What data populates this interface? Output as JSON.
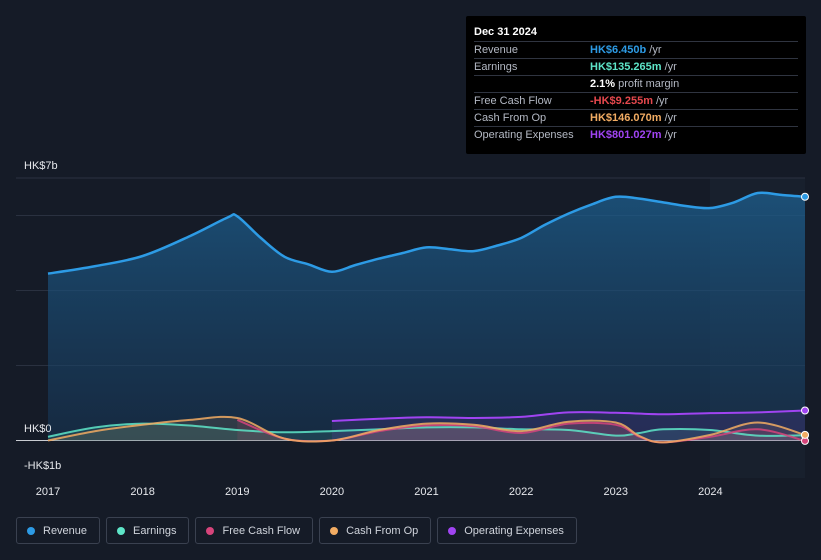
{
  "tooltip": {
    "date": "Dec 31 2024",
    "rows": [
      {
        "label": "Revenue",
        "value": "HK$6.450b",
        "unit": "/yr",
        "color": "#2d9be5"
      },
      {
        "label": "Earnings",
        "value": "HK$135.265m",
        "unit": "/yr",
        "color": "#5ee5c8"
      },
      {
        "label": "",
        "value": "2.1%",
        "unit": "profit margin",
        "color": "#ffffff"
      },
      {
        "label": "Free Cash Flow",
        "value": "-HK$9.255m",
        "unit": "/yr",
        "color": "#e5484d"
      },
      {
        "label": "Cash From Op",
        "value": "HK$146.070m",
        "unit": "/yr",
        "color": "#f2ac63"
      },
      {
        "label": "Operating Expenses",
        "value": "HK$801.027m",
        "unit": "/yr",
        "color": "#a044f2"
      }
    ]
  },
  "axis": {
    "y_top_label": "HK$7b",
    "y_zero_label": "HK$0",
    "y_bottom_label": "-HK$1b",
    "x_ticks": [
      "2017",
      "2018",
      "2019",
      "2020",
      "2021",
      "2022",
      "2023",
      "2024"
    ]
  },
  "legend": [
    {
      "label": "Revenue",
      "color": "#2d9be5"
    },
    {
      "label": "Earnings",
      "color": "#5ee5c8"
    },
    {
      "label": "Free Cash Flow",
      "color": "#d6447b"
    },
    {
      "label": "Cash From Op",
      "color": "#f2ac63"
    },
    {
      "label": "Operating Expenses",
      "color": "#a044f2"
    }
  ],
  "chart_data": {
    "type": "area",
    "ylim": [
      -1,
      7
    ],
    "y_unit": "HK$b",
    "x_ticks": [
      2017,
      2018,
      2019,
      2020,
      2021,
      2022,
      2023,
      2024
    ],
    "series": [
      {
        "name": "Revenue",
        "color": "#2d9be5",
        "x": [
          2017.0,
          2017.5,
          2018.0,
          2018.5,
          2018.9,
          2019.0,
          2019.25,
          2019.5,
          2019.75,
          2020.0,
          2020.25,
          2020.5,
          2020.75,
          2021.0,
          2021.25,
          2021.5,
          2021.75,
          2022.0,
          2022.25,
          2022.5,
          2022.75,
          2023.0,
          2023.25,
          2023.5,
          2023.75,
          2024.0,
          2024.25,
          2024.5,
          2024.75,
          2025.0
        ],
        "y": [
          4.45,
          4.65,
          4.92,
          5.45,
          5.95,
          5.98,
          5.4,
          4.9,
          4.7,
          4.5,
          4.68,
          4.85,
          5.0,
          5.15,
          5.1,
          5.05,
          5.2,
          5.4,
          5.75,
          6.05,
          6.3,
          6.5,
          6.45,
          6.35,
          6.25,
          6.2,
          6.35,
          6.6,
          6.55,
          6.5
        ]
      },
      {
        "name": "Earnings",
        "color": "#5ee5c8",
        "x": [
          2017.0,
          2017.5,
          2018.0,
          2018.5,
          2019.0,
          2019.5,
          2020.0,
          2020.5,
          2021.0,
          2021.5,
          2022.0,
          2022.5,
          2023.0,
          2023.25,
          2023.5,
          2024.0,
          2024.5,
          2025.0
        ],
        "y": [
          0.1,
          0.35,
          0.45,
          0.4,
          0.28,
          0.22,
          0.25,
          0.3,
          0.35,
          0.35,
          0.3,
          0.28,
          0.13,
          0.2,
          0.3,
          0.28,
          0.13,
          0.14
        ]
      },
      {
        "name": "Free Cash Flow",
        "color": "#d6447b",
        "x": [
          2019.0,
          2019.5,
          2020.0,
          2020.5,
          2021.0,
          2021.5,
          2022.0,
          2022.5,
          2023.0,
          2023.25,
          2023.5,
          2024.0,
          2024.5,
          2025.0
        ],
        "y": [
          0.55,
          0.05,
          0.0,
          0.25,
          0.4,
          0.38,
          0.2,
          0.45,
          0.42,
          0.1,
          -0.05,
          0.1,
          0.3,
          -0.01
        ]
      },
      {
        "name": "Cash From Op",
        "color": "#f2ac63",
        "x": [
          2017.0,
          2017.5,
          2018.0,
          2018.5,
          2019.0,
          2019.5,
          2020.0,
          2020.5,
          2021.0,
          2021.5,
          2022.0,
          2022.5,
          2023.0,
          2023.25,
          2023.5,
          2024.0,
          2024.5,
          2025.0
        ],
        "y": [
          0.0,
          0.25,
          0.42,
          0.55,
          0.6,
          0.05,
          0.0,
          0.28,
          0.45,
          0.42,
          0.25,
          0.5,
          0.48,
          0.12,
          -0.05,
          0.15,
          0.48,
          0.15
        ]
      },
      {
        "name": "Operating Expenses",
        "color": "#a044f2",
        "x": [
          2020.0,
          2020.5,
          2021.0,
          2021.5,
          2022.0,
          2022.5,
          2023.0,
          2023.5,
          2024.0,
          2024.5,
          2025.0
        ],
        "y": [
          0.52,
          0.58,
          0.62,
          0.6,
          0.63,
          0.75,
          0.74,
          0.7,
          0.73,
          0.75,
          0.8
        ]
      }
    ]
  }
}
